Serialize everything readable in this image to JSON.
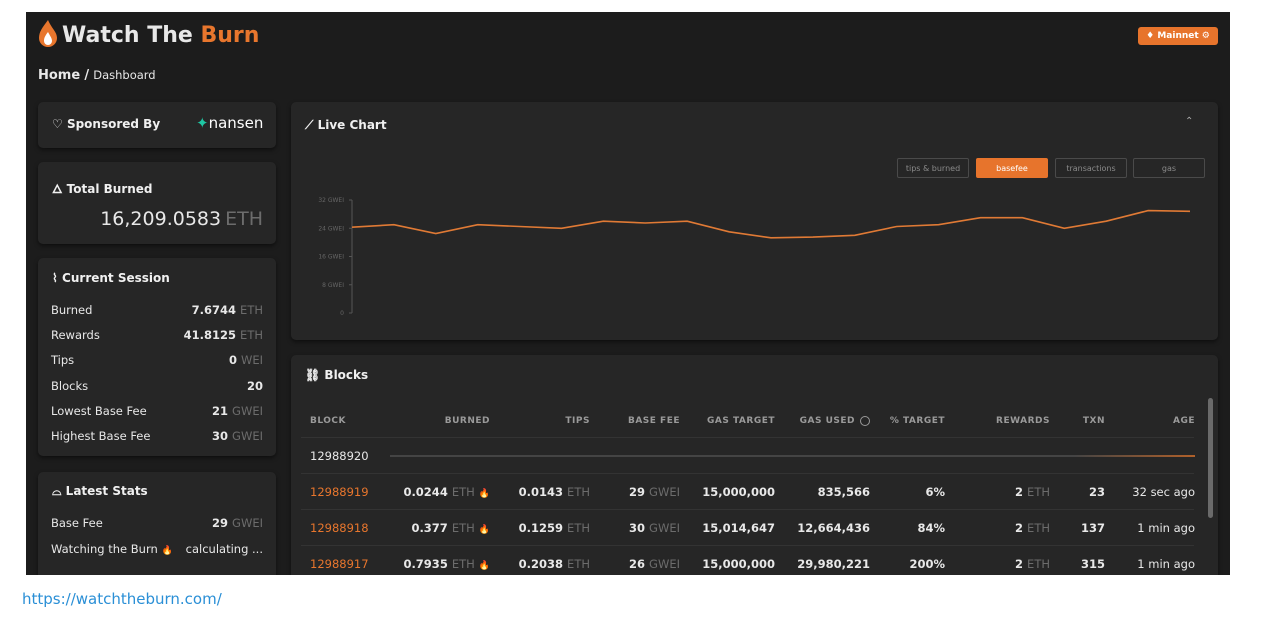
{
  "header": {
    "brand_1": "Watch The",
    "brand_2": "Burn",
    "network": "Mainnet"
  },
  "breadcrumb": {
    "home": "Home",
    "separator": "/",
    "current": "Dashboard"
  },
  "sponsor": {
    "label": "Sponsored By",
    "name": "nansen"
  },
  "total_burned": {
    "title": "Total Burned",
    "value": "16,209.0583",
    "unit": "ETH"
  },
  "current_session": {
    "title": "Current Session",
    "rows": [
      [
        "Burned",
        "7.6744",
        "ETH"
      ],
      [
        "Rewards",
        "41.8125",
        "ETH"
      ],
      [
        "Tips",
        "0",
        "WEI"
      ],
      [
        "Blocks",
        "20"
      ],
      [
        "Lowest Base Fee",
        "21",
        "GWEI"
      ],
      [
        "Highest Base Fee",
        "30",
        "GWEI"
      ]
    ]
  },
  "latest_stats": {
    "title": "Latest Stats",
    "rows": [
      [
        "Base Fee",
        "29",
        "GWEI"
      ],
      [
        "Watching the Burn",
        "calculating ..."
      ]
    ]
  },
  "live_chart": {
    "title": "Live Chart",
    "tabs": [
      "tips & burned",
      "basefee",
      "transactions",
      "gas"
    ],
    "active_tab": 1,
    "chart": {
      "type": "line",
      "color": "#e07a35",
      "values": [
        24.3,
        25,
        22.5,
        25,
        24.5,
        24,
        26,
        25.5,
        26,
        23,
        21.3,
        21.5,
        22,
        24.5,
        25,
        27,
        27,
        24,
        26,
        29,
        28.8
      ],
      "ylim": [
        0,
        32
      ],
      "yticks": [
        0,
        {
          "value": 8,
          "label": "8 GWEI"
        },
        {
          "value": 16,
          "label": "16 GWEI"
        },
        {
          "value": 24,
          "label": "24 GWEI"
        },
        {
          "value": 32,
          "label": "32 GWEI"
        }
      ]
    }
  },
  "blocks": {
    "title": "Blocks",
    "columns": [
      "BLOCK",
      "BURNED",
      "TIPS",
      "BASE FEE",
      "GAS TARGET",
      "GAS USED",
      "% TARGET",
      "REWARDS",
      "TXN",
      "AGE"
    ],
    "pending": "12988920",
    "rows": [
      [
        "12988919",
        "0.0244",
        "ETH",
        "0.0143",
        "ETH",
        "29",
        "GWEI",
        "15,000,000",
        "835,566",
        "6%",
        "2",
        "ETH",
        "23",
        "32 sec ago"
      ],
      [
        "12988918",
        "0.377",
        "ETH",
        "0.1259",
        "ETH",
        "30",
        "GWEI",
        "15,014,647",
        "12,664,436",
        "84%",
        "2",
        "ETH",
        "137",
        "1 min ago"
      ],
      [
        "12988917",
        "0.7935",
        "ETH",
        "0.2038",
        "ETH",
        "26",
        "GWEI",
        "15,000,000",
        "29,980,221",
        "200%",
        "2",
        "ETH",
        "315",
        "1 min ago"
      ]
    ]
  },
  "footer_link": "https://watchtheburn.com/"
}
